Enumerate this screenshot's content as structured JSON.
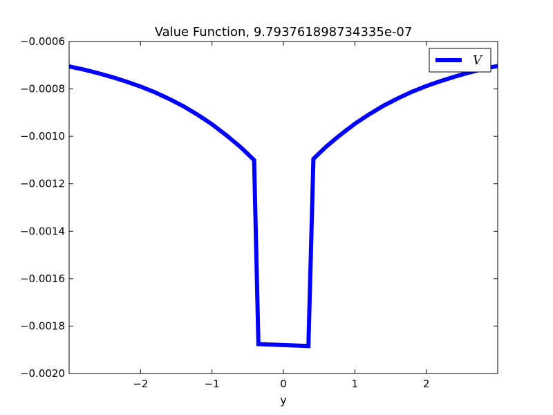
{
  "chart_data": {
    "type": "line",
    "title": "Value Function, 9.793761898734335e-07",
    "xlabel": "y",
    "ylabel": "",
    "xlim": [
      -3.0,
      3.0
    ],
    "ylim": [
      -0.002,
      -0.0006
    ],
    "x_ticks": [
      -2,
      -1,
      0,
      1,
      2
    ],
    "x_tick_labels": [
      "−2",
      "−1",
      "0",
      "1",
      "2"
    ],
    "y_ticks": [
      -0.0006,
      -0.0008,
      -0.001,
      -0.0012,
      -0.0014,
      -0.0016,
      -0.0018,
      -0.002
    ],
    "y_tick_labels": [
      "−0.0006",
      "−0.0008",
      "−0.0010",
      "−0.0012",
      "−0.0014",
      "−0.0016",
      "−0.0018",
      "−0.0020"
    ],
    "grid": false,
    "legend_position": "top-right",
    "series": [
      {
        "name": "V",
        "color": "#0000ff",
        "x": [
          -3.0,
          -2.8,
          -2.6,
          -2.4,
          -2.2,
          -2.0,
          -1.8,
          -1.6,
          -1.4,
          -1.2,
          -1.0,
          -0.8,
          -0.6,
          -0.41,
          -0.35,
          0.0,
          0.35,
          0.42,
          0.6,
          0.8,
          1.0,
          1.2,
          1.4,
          1.6,
          1.8,
          2.0,
          2.2,
          2.4,
          2.6,
          2.8,
          3.0
        ],
        "y": [
          -0.000705,
          -0.000718,
          -0.000733,
          -0.00075,
          -0.000769,
          -0.00079,
          -0.000814,
          -0.000842,
          -0.000873,
          -0.000909,
          -0.000949,
          -0.000995,
          -0.001045,
          -0.0011,
          -0.001876,
          -0.00188,
          -0.001884,
          -0.001095,
          -0.001043,
          -0.000993,
          -0.000947,
          -0.000907,
          -0.000871,
          -0.00084,
          -0.000812,
          -0.000788,
          -0.000767,
          -0.000748,
          -0.000731,
          -0.000716,
          -0.000703
        ]
      }
    ]
  }
}
